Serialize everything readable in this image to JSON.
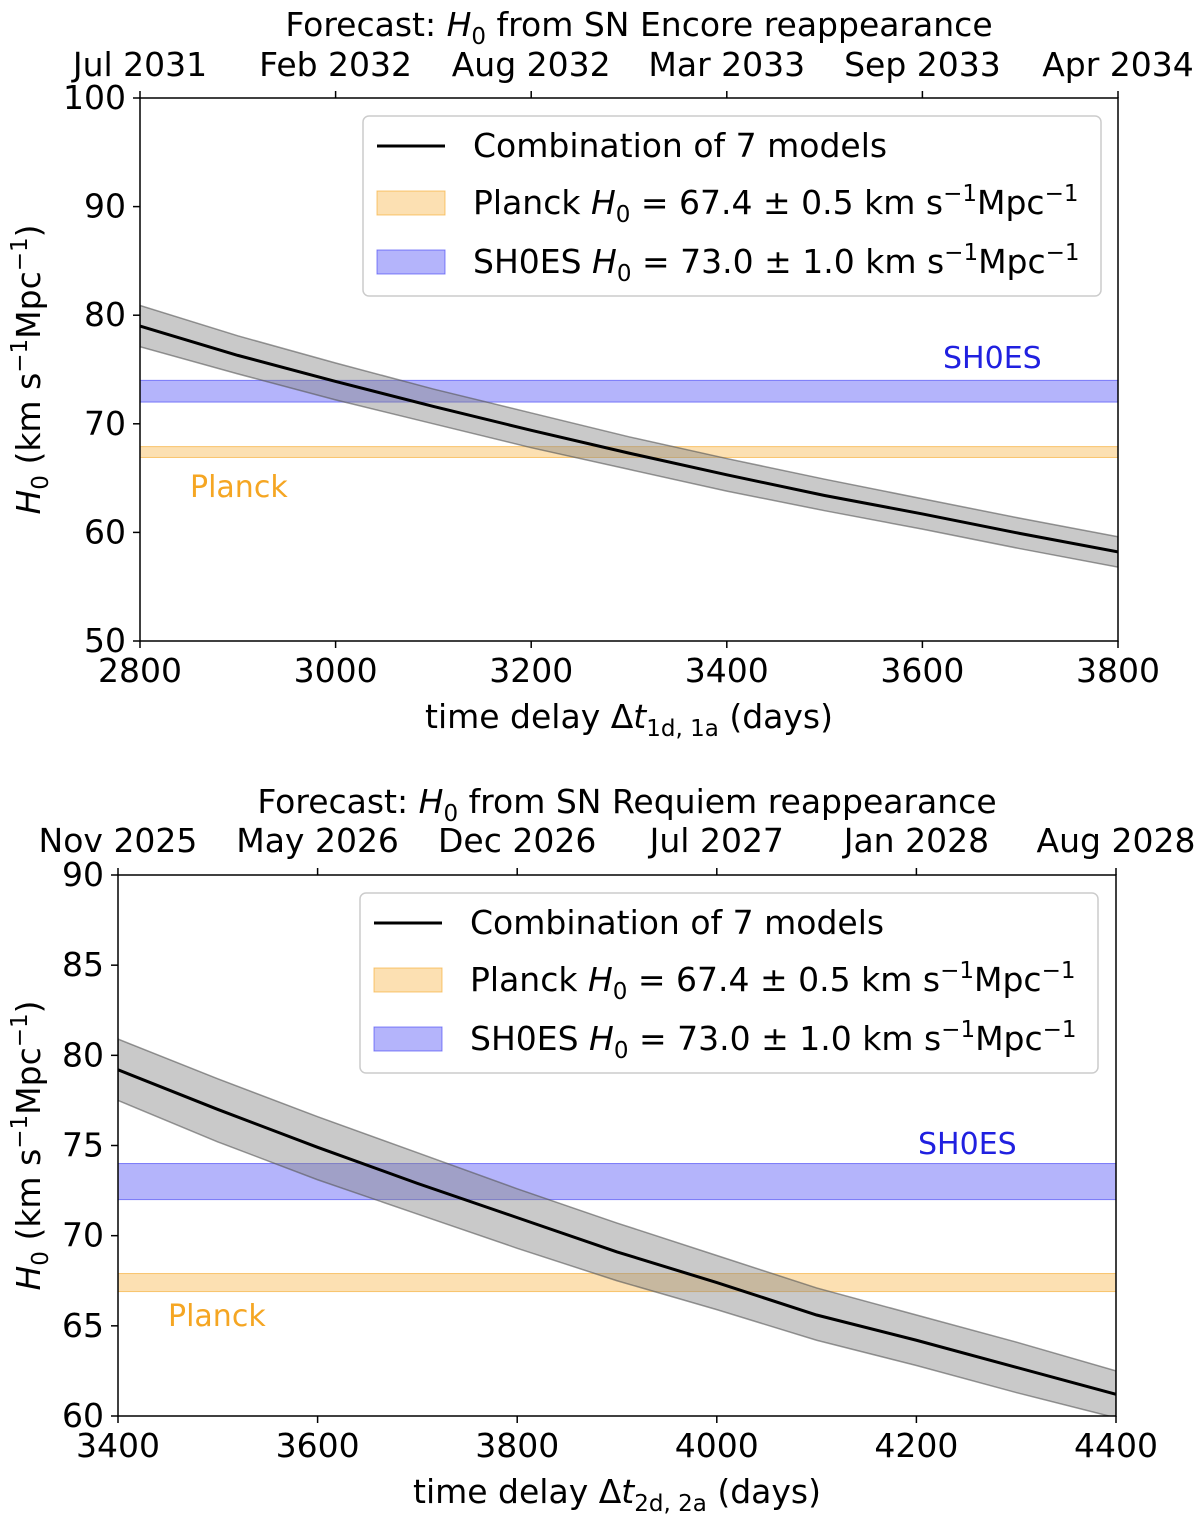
{
  "chart_data": [
    {
      "type": "line",
      "title": "Forecast: H0 from SN Encore reappearance",
      "title_prefix": "Forecast: ",
      "title_symbol": "H",
      "title_symbol_sub": "0",
      "title_suffix": " from SN Encore reappearance",
      "xlabel": "time delay Δt1d, 1a (days)",
      "xlabel_prefix": "time delay Δ",
      "xlabel_symbol": "t",
      "xlabel_sub": "1d, 1a",
      "xlabel_suffix": " (days)",
      "ylabel": "H0 (km s−1Mpc−1)",
      "xlim": [
        2800,
        3800
      ],
      "ylim": [
        50,
        100
      ],
      "xticks": [
        "2800",
        "3000",
        "3200",
        "3400",
        "3600",
        "3800"
      ],
      "yticks": [
        "50",
        "60",
        "70",
        "80",
        "90",
        "100"
      ],
      "top_axis_ticks": [
        "Jul 2031",
        "Feb 2032",
        "Aug 2032",
        "Mar 2033",
        "Sep 2033",
        "Apr 2034"
      ],
      "series": [
        {
          "name": "Combination of 7 models",
          "color": "#000000",
          "x": [
            2800,
            2900,
            3000,
            3100,
            3200,
            3300,
            3400,
            3500,
            3600,
            3700,
            3800
          ],
          "y": [
            79.0,
            76.3,
            73.9,
            71.6,
            69.4,
            67.3,
            65.3,
            63.4,
            61.7,
            59.9,
            58.2
          ],
          "band_low": [
            77.1,
            74.6,
            72.2,
            70.0,
            67.8,
            65.8,
            63.8,
            62.0,
            60.3,
            58.5,
            56.8
          ],
          "band_high": [
            80.9,
            78.1,
            75.6,
            73.2,
            71.0,
            68.8,
            66.8,
            64.9,
            63.1,
            61.3,
            59.6
          ],
          "band_color": "#888888"
        }
      ],
      "reference_bands": [
        {
          "name": "Planck",
          "legend_symbol": "Planck H0 = 67.4 ± 0.5 km s−1Mpc−1",
          "center": 67.4,
          "error": 0.5,
          "color": "#f5a623"
        },
        {
          "name": "SH0ES",
          "legend_symbol": "SH0ES H0 = 73.0 ± 1.0 km s−1Mpc−1",
          "center": 73.0,
          "error": 1.0,
          "color": "#3b3bf5"
        }
      ],
      "annotations": {
        "planck": "Planck",
        "shoes": "SH0ES"
      },
      "legend": {
        "placement": "upper-right",
        "line_label": "Combination of 7 models",
        "planck_label": "Planck",
        "planck_value": "67.4 ± 0.5 km s",
        "shoes_label": "SH0ES",
        "shoes_value": "73.0 ± 1.0 km s"
      }
    },
    {
      "type": "line",
      "title": "Forecast: H0 from SN Requiem reappearance",
      "title_prefix": "Forecast: ",
      "title_symbol": "H",
      "title_symbol_sub": "0",
      "title_suffix": " from SN Requiem reappearance",
      "xlabel": "time delay Δt2d, 2a (days)",
      "xlabel_prefix": "time delay Δ",
      "xlabel_symbol": "t",
      "xlabel_sub": "2d, 2a",
      "xlabel_suffix": " (days)",
      "ylabel": "H0 (km s−1Mpc−1)",
      "xlim": [
        3400,
        4400
      ],
      "ylim": [
        60,
        90
      ],
      "xticks": [
        "3400",
        "3600",
        "3800",
        "4000",
        "4200",
        "4400"
      ],
      "yticks": [
        "60",
        "65",
        "70",
        "75",
        "80",
        "85",
        "90"
      ],
      "top_axis_ticks": [
        "Nov 2025",
        "May 2026",
        "Dec 2026",
        "Jul 2027",
        "Jan 2028",
        "Aug 2028"
      ],
      "series": [
        {
          "name": "Combination of 7 models",
          "color": "#000000",
          "x": [
            3400,
            3500,
            3600,
            3700,
            3800,
            3900,
            4000,
            4100,
            4200,
            4300,
            4400
          ],
          "y": [
            79.2,
            77.0,
            74.9,
            72.9,
            71.0,
            69.1,
            67.4,
            65.6,
            64.2,
            62.7,
            61.2
          ],
          "band_low": [
            77.5,
            75.2,
            73.1,
            71.2,
            69.3,
            67.5,
            65.9,
            64.2,
            62.8,
            61.3,
            59.9
          ],
          "band_high": [
            80.9,
            78.7,
            76.6,
            74.6,
            72.6,
            70.7,
            68.9,
            67.1,
            65.6,
            64.1,
            62.5
          ],
          "band_color": "#888888"
        }
      ],
      "reference_bands": [
        {
          "name": "Planck",
          "legend_symbol": "Planck H0 = 67.4 ± 0.5 km s−1Mpc−1",
          "center": 67.4,
          "error": 0.5,
          "color": "#f5a623"
        },
        {
          "name": "SH0ES",
          "legend_symbol": "SH0ES H0 = 73.0 ± 1.0 km s−1Mpc−1",
          "center": 73.0,
          "error": 1.0,
          "color": "#3b3bf5"
        }
      ],
      "annotations": {
        "planck": "Planck",
        "shoes": "SH0ES"
      },
      "legend": {
        "placement": "upper-right",
        "line_label": "Combination of 7 models",
        "planck_label": "Planck",
        "planck_value": "67.4 ± 0.5 km s",
        "shoes_label": "SH0ES",
        "shoes_value": "73.0 ± 1.0 km s"
      }
    }
  ],
  "common": {
    "h_symbol": "H",
    "h_sub": "0",
    "equals": " = ",
    "sup_minus_one": "−1",
    "mpc": "Mpc",
    "ylabel_units_open": " (km s",
    "ylabel_units_close": ")"
  }
}
